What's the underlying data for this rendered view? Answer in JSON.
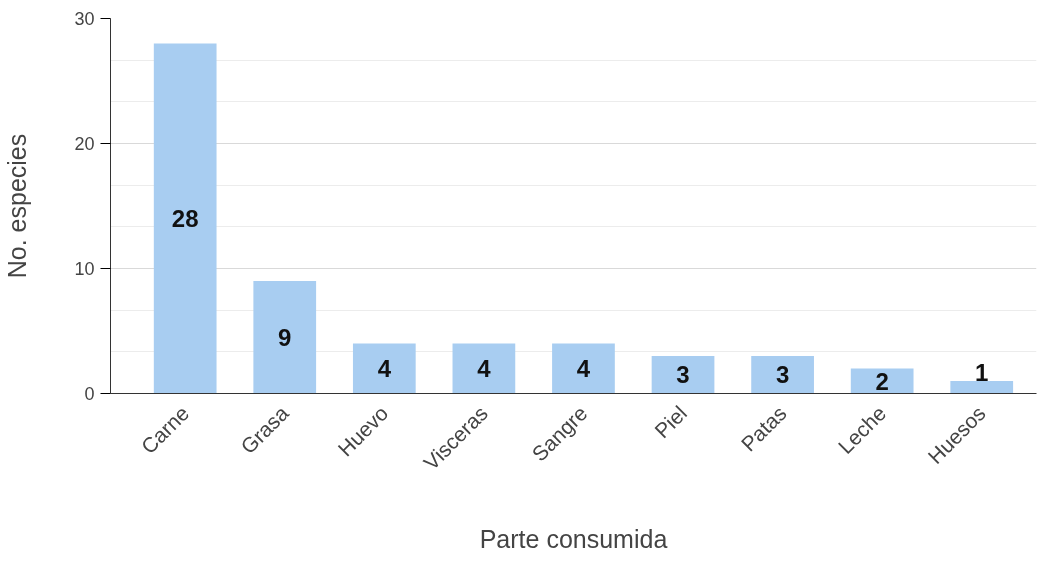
{
  "chart_data": {
    "type": "bar",
    "xlabel": "Parte consumida",
    "ylabel": "No. especies",
    "categories": [
      "Carne",
      "Grasa",
      "Huevo",
      "Visceras",
      "Sangre",
      "Piel",
      "Patas",
      "Leche",
      "Huesos"
    ],
    "values": [
      28,
      9,
      4,
      4,
      4,
      3,
      3,
      2,
      1
    ],
    "color": "#a8cdf1",
    "ylim": [
      0,
      30
    ],
    "yticks": [
      0,
      10,
      20,
      30
    ],
    "grid": "y",
    "data_labels": true
  }
}
